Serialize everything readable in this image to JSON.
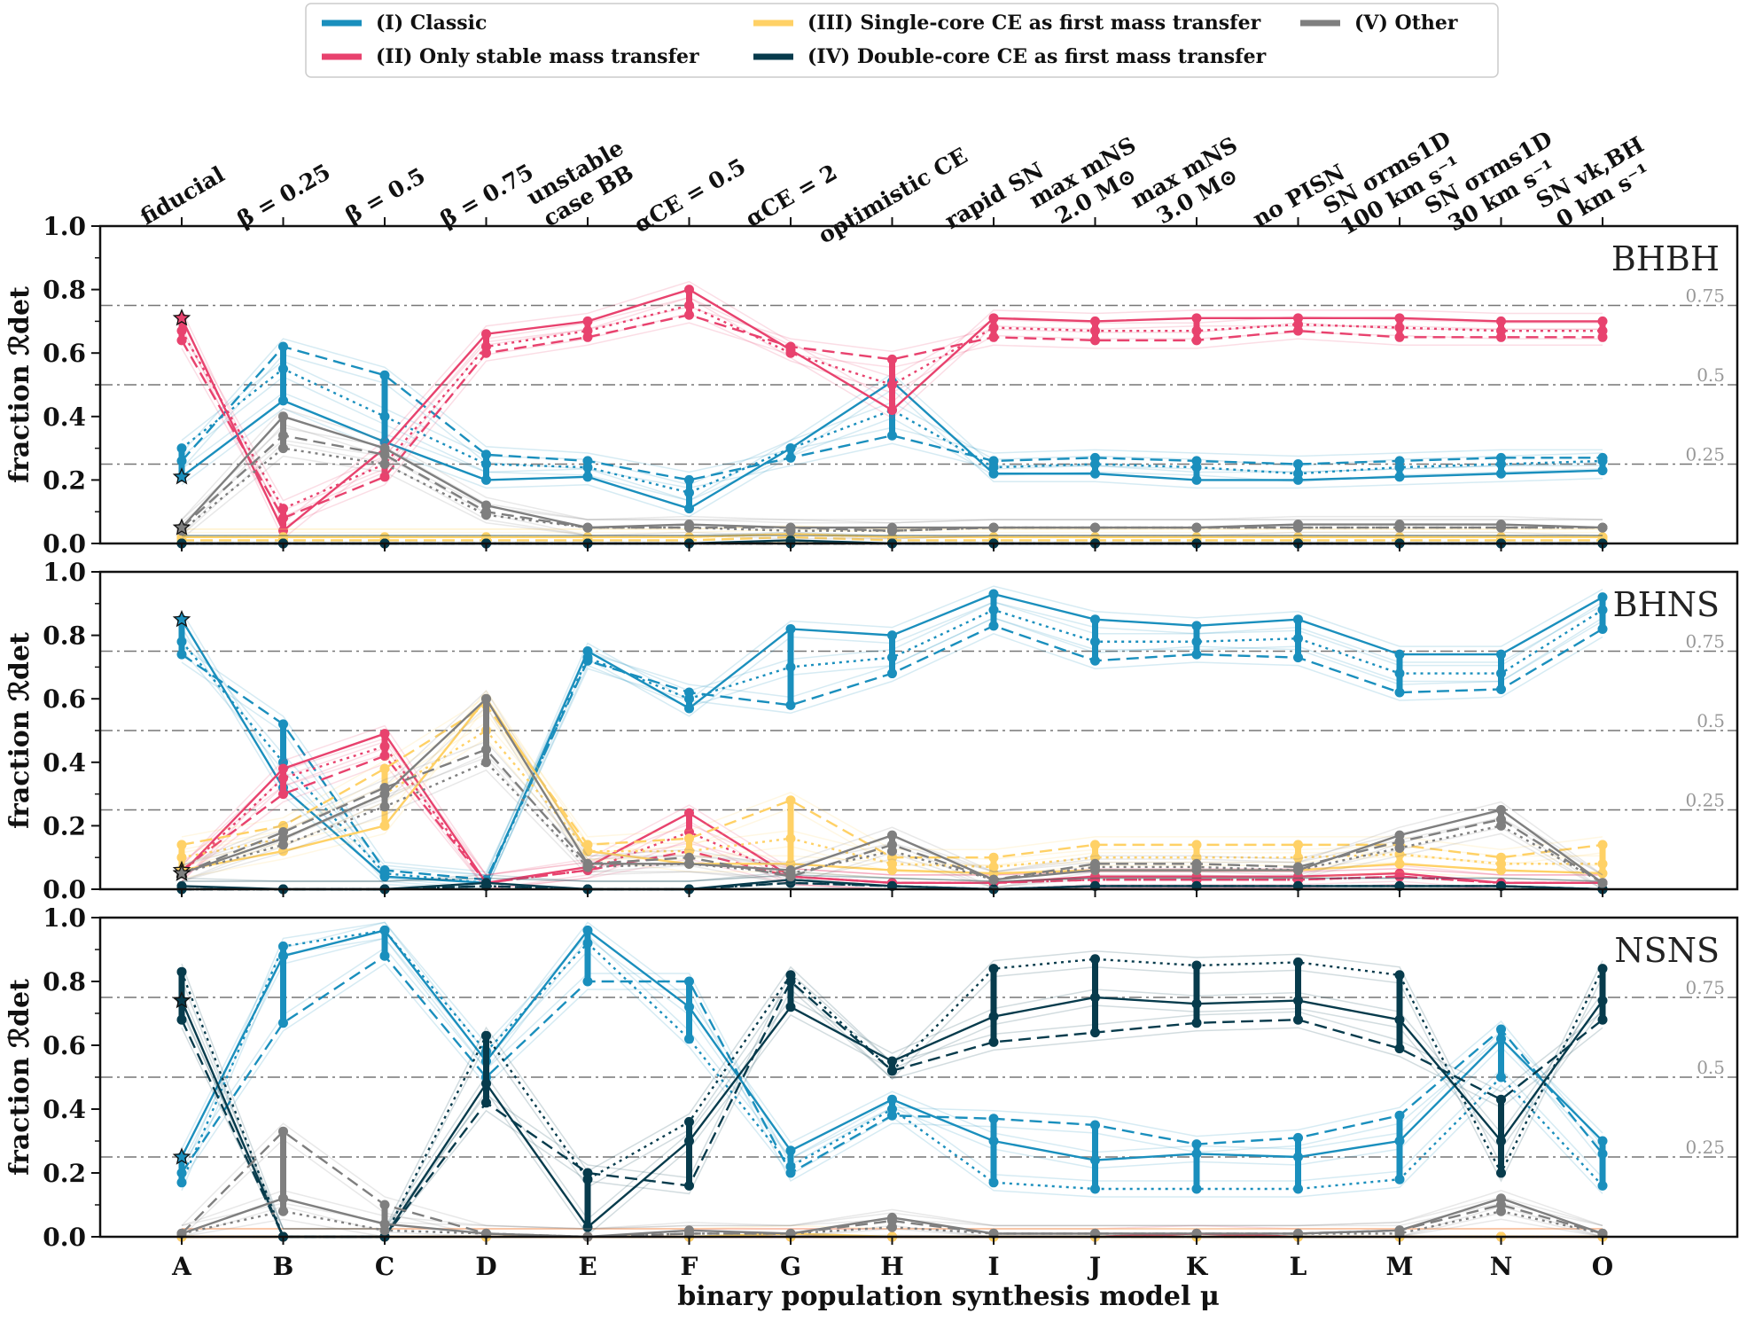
{
  "legend": [
    {
      "label": "(I) Classic",
      "color": "#1a8fbd"
    },
    {
      "label": "(II) Only stable mass transfer",
      "color": "#e8426e"
    },
    {
      "label": "(III) Single-core CE as first mass transfer",
      "color": "#ffd166"
    },
    {
      "label": "(IV) Double-core CE as first mass transfer",
      "color": "#073b4c"
    },
    {
      "label": "(V) Other",
      "color": "#7f7f7f"
    }
  ],
  "top_labels": [
    [
      "fiducial"
    ],
    [
      "β = 0.25"
    ],
    [
      "β = 0.5"
    ],
    [
      "β = 0.75"
    ],
    [
      "unstable",
      "case BB"
    ],
    [
      "αCE = 0.5"
    ],
    [
      "αCE = 2"
    ],
    [
      "optimistic CE"
    ],
    [
      "rapid SN"
    ],
    [
      "max mNS",
      "2.0 M⊙"
    ],
    [
      "max mNS",
      "3.0 M⊙"
    ],
    [
      "no PISN"
    ],
    [
      "SN σrms1D",
      "100 km s⁻¹"
    ],
    [
      "SN σrms1D",
      "30 km s⁻¹"
    ],
    [
      "SN vk,BH",
      "0 km s⁻¹"
    ]
  ],
  "xlabel": "binary population synthesis model μ",
  "ylabel": "fraction ℛdet",
  "ref_labels": [
    "0.75",
    "0.5",
    "0.25"
  ],
  "chart_data": {
    "type": "line",
    "categories": [
      "A",
      "B",
      "C",
      "D",
      "E",
      "F",
      "G",
      "H",
      "I",
      "J",
      "K",
      "L",
      "M",
      "N",
      "O"
    ],
    "ylim": [
      0,
      1.0
    ],
    "yticks": [
      "0.0",
      "0.2",
      "0.4",
      "0.6",
      "0.8",
      "1.0"
    ],
    "reference_lines": [
      0.25,
      0.5,
      0.75
    ],
    "panels": [
      {
        "label": "BHBH",
        "series": [
          {
            "name": "(I) Classic",
            "color": "#1a8fbd",
            "solid": [
              0.21,
              0.45,
              0.32,
              0.2,
              0.21,
              0.11,
              0.3,
              0.51,
              0.22,
              0.22,
              0.2,
              0.2,
              0.21,
              0.22,
              0.23
            ],
            "dashed": [
              0.26,
              0.62,
              0.53,
              0.28,
              0.26,
              0.2,
              0.27,
              0.34,
              0.26,
              0.27,
              0.26,
              0.25,
              0.26,
              0.27,
              0.27
            ],
            "dotted": [
              0.3,
              0.55,
              0.4,
              0.25,
              0.24,
              0.16,
              0.3,
              0.42,
              0.24,
              0.25,
              0.24,
              0.22,
              0.24,
              0.25,
              0.26
            ]
          },
          {
            "name": "(II) Only stable mass transfer",
            "color": "#e8426e",
            "solid": [
              0.71,
              0.04,
              0.3,
              0.66,
              0.7,
              0.8,
              0.61,
              0.42,
              0.71,
              0.7,
              0.71,
              0.71,
              0.71,
              0.7,
              0.7
            ],
            "dashed": [
              0.64,
              0.08,
              0.21,
              0.6,
              0.65,
              0.72,
              0.62,
              0.58,
              0.65,
              0.64,
              0.64,
              0.67,
              0.65,
              0.65,
              0.65
            ],
            "dotted": [
              0.67,
              0.11,
              0.25,
              0.62,
              0.67,
              0.75,
              0.6,
              0.5,
              0.68,
              0.67,
              0.67,
              0.69,
              0.68,
              0.67,
              0.67
            ]
          },
          {
            "name": "(III) Single-core CE as first mass transfer",
            "color": "#ffd166",
            "solid": [
              0.02,
              0.02,
              0.02,
              0.02,
              0.02,
              0.02,
              0.03,
              0.02,
              0.02,
              0.02,
              0.02,
              0.02,
              0.02,
              0.02,
              0.02
            ],
            "dashed": [
              0.01,
              0.01,
              0.01,
              0.01,
              0.01,
              0.01,
              0.02,
              0.01,
              0.01,
              0.01,
              0.01,
              0.01,
              0.01,
              0.01,
              0.01
            ],
            "dotted": [
              0.02,
              0.02,
              0.02,
              0.02,
              0.02,
              0.02,
              0.03,
              0.02,
              0.02,
              0.02,
              0.02,
              0.02,
              0.02,
              0.02,
              0.02
            ]
          },
          {
            "name": "(IV) Double-core CE as first mass transfer",
            "color": "#073b4c",
            "solid": [
              0.0,
              0.0,
              0.0,
              0.0,
              0.0,
              0.0,
              0.01,
              0.0,
              0.0,
              0.0,
              0.0,
              0.0,
              0.0,
              0.0,
              0.0
            ],
            "dashed": [
              0.0,
              0.0,
              0.0,
              0.0,
              0.0,
              0.0,
              0.0,
              0.0,
              0.0,
              0.0,
              0.0,
              0.0,
              0.0,
              0.0,
              0.0
            ],
            "dotted": [
              0.0,
              0.0,
              0.0,
              0.0,
              0.0,
              0.0,
              0.0,
              0.0,
              0.0,
              0.0,
              0.0,
              0.0,
              0.0,
              0.0,
              0.0
            ]
          },
          {
            "name": "(V) Other",
            "color": "#7f7f7f",
            "solid": [
              0.05,
              0.4,
              0.3,
              0.12,
              0.05,
              0.06,
              0.05,
              0.05,
              0.05,
              0.05,
              0.05,
              0.06,
              0.06,
              0.06,
              0.05
            ],
            "dashed": [
              0.05,
              0.34,
              0.28,
              0.1,
              0.05,
              0.05,
              0.05,
              0.04,
              0.05,
              0.05,
              0.05,
              0.05,
              0.05,
              0.05,
              0.05
            ],
            "dotted": [
              0.04,
              0.3,
              0.25,
              0.09,
              0.05,
              0.05,
              0.04,
              0.04,
              0.05,
              0.05,
              0.05,
              0.05,
              0.05,
              0.05,
              0.05
            ]
          }
        ]
      },
      {
        "label": "BHNS",
        "series": [
          {
            "name": "(I) Classic",
            "color": "#1a8fbd",
            "solid": [
              0.85,
              0.32,
              0.04,
              0.02,
              0.75,
              0.57,
              0.82,
              0.8,
              0.93,
              0.85,
              0.83,
              0.85,
              0.74,
              0.74,
              0.92
            ],
            "dashed": [
              0.74,
              0.52,
              0.06,
              0.03,
              0.72,
              0.62,
              0.58,
              0.68,
              0.83,
              0.72,
              0.74,
              0.73,
              0.62,
              0.63,
              0.82
            ],
            "dotted": [
              0.78,
              0.4,
              0.05,
              0.02,
              0.73,
              0.6,
              0.7,
              0.73,
              0.88,
              0.78,
              0.78,
              0.79,
              0.68,
              0.68,
              0.88
            ]
          },
          {
            "name": "(II) Only stable mass transfer",
            "color": "#e8426e",
            "solid": [
              0.05,
              0.38,
              0.49,
              0.02,
              0.07,
              0.24,
              0.04,
              0.02,
              0.02,
              0.04,
              0.04,
              0.04,
              0.05,
              0.02,
              0.02
            ],
            "dashed": [
              0.06,
              0.3,
              0.42,
              0.02,
              0.06,
              0.12,
              0.04,
              0.02,
              0.02,
              0.03,
              0.03,
              0.03,
              0.04,
              0.02,
              0.02
            ],
            "dotted": [
              0.05,
              0.35,
              0.45,
              0.02,
              0.06,
              0.18,
              0.04,
              0.02,
              0.02,
              0.03,
              0.03,
              0.03,
              0.04,
              0.02,
              0.02
            ]
          },
          {
            "name": "(III) Single-core CE as first mass transfer",
            "color": "#ffd166",
            "solid": [
              0.06,
              0.12,
              0.2,
              0.6,
              0.12,
              0.08,
              0.08,
              0.06,
              0.05,
              0.06,
              0.06,
              0.06,
              0.08,
              0.06,
              0.05
            ],
            "dashed": [
              0.14,
              0.2,
              0.38,
              0.58,
              0.14,
              0.16,
              0.28,
              0.1,
              0.1,
              0.14,
              0.14,
              0.14,
              0.14,
              0.1,
              0.14
            ],
            "dotted": [
              0.1,
              0.16,
              0.3,
              0.5,
              0.12,
              0.12,
              0.16,
              0.08,
              0.07,
              0.1,
              0.1,
              0.1,
              0.11,
              0.08,
              0.08
            ]
          },
          {
            "name": "(IV) Double-core CE as first mass transfer",
            "color": "#073b4c",
            "solid": [
              0.01,
              0.0,
              0.0,
              0.02,
              0.0,
              0.0,
              0.03,
              0.01,
              0.0,
              0.01,
              0.01,
              0.01,
              0.01,
              0.01,
              0.0
            ],
            "dashed": [
              0.0,
              0.0,
              0.0,
              0.01,
              0.0,
              0.0,
              0.02,
              0.01,
              0.0,
              0.01,
              0.01,
              0.01,
              0.01,
              0.01,
              0.0
            ],
            "dotted": [
              0.0,
              0.0,
              0.0,
              0.01,
              0.0,
              0.0,
              0.02,
              0.01,
              0.0,
              0.01,
              0.01,
              0.01,
              0.01,
              0.01,
              0.0
            ]
          },
          {
            "name": "(V) Other",
            "color": "#7f7f7f",
            "solid": [
              0.05,
              0.16,
              0.3,
              0.6,
              0.08,
              0.08,
              0.06,
              0.17,
              0.03,
              0.06,
              0.06,
              0.06,
              0.17,
              0.25,
              0.02
            ],
            "dashed": [
              0.05,
              0.18,
              0.32,
              0.44,
              0.08,
              0.1,
              0.04,
              0.14,
              0.03,
              0.08,
              0.08,
              0.07,
              0.15,
              0.22,
              0.02
            ],
            "dotted": [
              0.05,
              0.14,
              0.26,
              0.4,
              0.07,
              0.08,
              0.05,
              0.12,
              0.03,
              0.07,
              0.07,
              0.06,
              0.13,
              0.2,
              0.02
            ]
          }
        ]
      },
      {
        "label": "NSNS",
        "series": [
          {
            "name": "(I) Classic",
            "color": "#1a8fbd",
            "solid": [
              0.25,
              0.88,
              0.96,
              0.55,
              0.96,
              0.72,
              0.27,
              0.43,
              0.3,
              0.24,
              0.26,
              0.25,
              0.3,
              0.62,
              0.3
            ],
            "dashed": [
              0.2,
              0.67,
              0.88,
              0.5,
              0.8,
              0.8,
              0.2,
              0.38,
              0.37,
              0.35,
              0.29,
              0.31,
              0.38,
              0.65,
              0.26
            ],
            "dotted": [
              0.17,
              0.91,
              0.96,
              0.58,
              0.92,
              0.62,
              0.22,
              0.4,
              0.17,
              0.15,
              0.15,
              0.15,
              0.18,
              0.5,
              0.16
            ]
          },
          {
            "name": "(II) Only stable mass transfer",
            "color": "#e8426e",
            "solid": [
              0.0,
              0.0,
              0.0,
              0.0,
              0.0,
              0.0,
              0.0,
              0.0,
              0.0,
              0.0,
              0.01,
              0.0,
              0.0,
              0.0,
              0.0
            ],
            "dashed": [
              0.0,
              0.0,
              0.0,
              0.0,
              0.0,
              0.0,
              0.0,
              0.0,
              0.0,
              0.0,
              0.0,
              0.0,
              0.0,
              0.0,
              0.0
            ],
            "dotted": [
              0.0,
              0.0,
              0.0,
              0.0,
              0.0,
              0.0,
              0.0,
              0.0,
              0.0,
              0.0,
              0.0,
              0.0,
              0.0,
              0.0,
              0.0
            ]
          },
          {
            "name": "(III) Single-core CE as first mass transfer",
            "color": "#ffd166",
            "solid": [
              0.0,
              0.0,
              0.0,
              0.0,
              0.0,
              0.0,
              0.01,
              0.0,
              0.0,
              0.0,
              0.0,
              0.0,
              0.0,
              0.0,
              0.0
            ],
            "dashed": [
              0.0,
              0.0,
              0.0,
              0.0,
              0.0,
              0.0,
              0.0,
              0.0,
              0.0,
              0.0,
              0.0,
              0.0,
              0.0,
              0.0,
              0.0
            ],
            "dotted": [
              0.0,
              0.0,
              0.0,
              0.0,
              0.0,
              0.0,
              0.0,
              0.0,
              0.0,
              0.0,
              0.0,
              0.0,
              0.0,
              0.0,
              0.0
            ]
          },
          {
            "name": "(IV) Double-core CE as first mass transfer",
            "color": "#073b4c",
            "solid": [
              0.74,
              0.0,
              0.0,
              0.48,
              0.03,
              0.3,
              0.72,
              0.55,
              0.69,
              0.75,
              0.73,
              0.74,
              0.68,
              0.3,
              0.74
            ],
            "dashed": [
              0.68,
              0.0,
              0.0,
              0.42,
              0.2,
              0.16,
              0.8,
              0.52,
              0.61,
              0.64,
              0.67,
              0.68,
              0.59,
              0.43,
              0.68
            ],
            "dotted": [
              0.83,
              0.0,
              0.0,
              0.63,
              0.18,
              0.36,
              0.82,
              0.52,
              0.84,
              0.87,
              0.85,
              0.86,
              0.82,
              0.2,
              0.84
            ]
          },
          {
            "name": "(V) Other",
            "color": "#7f7f7f",
            "solid": [
              0.01,
              0.12,
              0.04,
              0.01,
              0.0,
              0.02,
              0.01,
              0.06,
              0.01,
              0.01,
              0.01,
              0.01,
              0.02,
              0.12,
              0.01
            ],
            "dashed": [
              0.01,
              0.33,
              0.1,
              0.01,
              0.0,
              0.01,
              0.01,
              0.05,
              0.01,
              0.01,
              0.01,
              0.01,
              0.02,
              0.1,
              0.01
            ],
            "dotted": [
              0.01,
              0.08,
              0.02,
              0.01,
              0.0,
              0.01,
              0.01,
              0.03,
              0.01,
              0.01,
              0.01,
              0.01,
              0.01,
              0.08,
              0.01
            ]
          }
        ]
      }
    ]
  }
}
